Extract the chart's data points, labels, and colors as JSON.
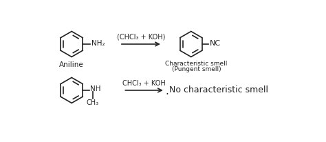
{
  "background_color": "#ffffff",
  "top_row": {
    "aniline_label": "Aniline",
    "nh2_label": "NH₂",
    "reagent_label": "(CHCl₃ + KOH)",
    "product_label": "NC",
    "smell_label1": "Characteristic smell",
    "smell_label2": "(Pungent smell)"
  },
  "bottom_row": {
    "nh_label": "NH",
    "ch3_label": "CH₃",
    "reagent_label": "CHCl₃ + KOH",
    "result_label": "No characteristic smell"
  },
  "line_color": "#222222",
  "text_color": "#222222",
  "font_size_small": 7.0,
  "font_size_reagent": 7.0,
  "font_size_result": 9.0,
  "font_size_aniline": 7.5
}
